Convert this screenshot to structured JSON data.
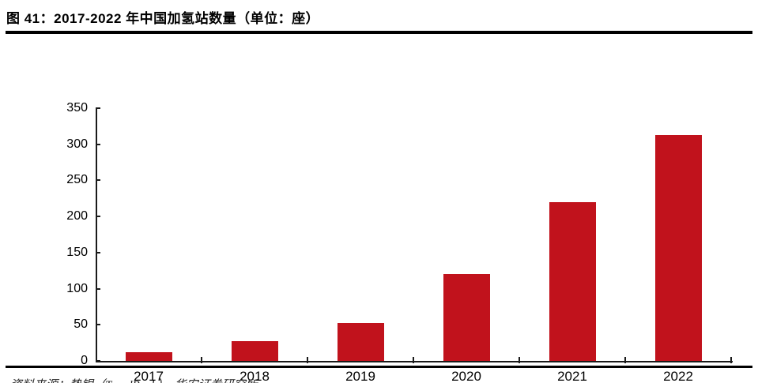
{
  "figure": {
    "title": "图 41：2017-2022 年中国加氢站数量（单位：座）",
    "source_note": "资料来源：势银（TrendBank），华安证券研究所"
  },
  "chart_data": {
    "type": "bar",
    "title": "2017-2022 年中国加氢站数量（单位：座）",
    "categories": [
      "2017",
      "2018",
      "2019",
      "2020",
      "2021",
      "2022"
    ],
    "values": [
      12,
      27,
      52,
      120,
      220,
      313
    ],
    "xlabel": "",
    "ylabel": "",
    "unit": "座",
    "ylim": [
      0,
      350
    ],
    "yticks": [
      0,
      50,
      100,
      150,
      200,
      250,
      300,
      350
    ],
    "grid": false,
    "legend": null,
    "bar_color": "#C1121C",
    "axis_color": "#1a1a1a"
  }
}
